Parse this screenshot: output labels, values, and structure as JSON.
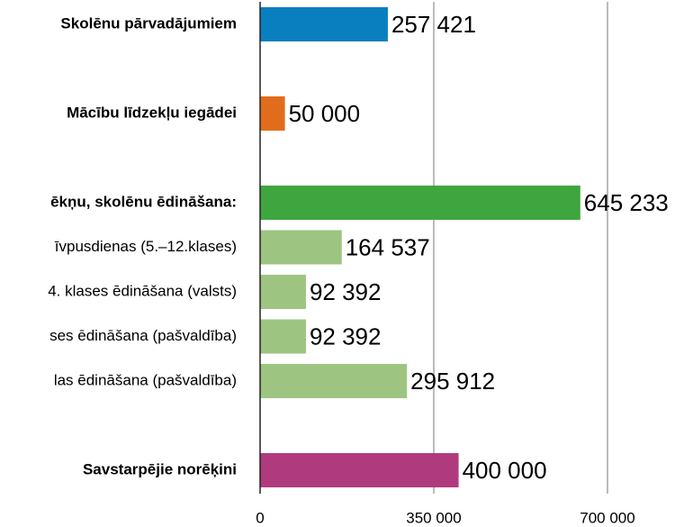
{
  "chart_data": {
    "type": "bar",
    "orientation": "horizontal",
    "categories": [
      "Skolēnu pārvadājumiem",
      null,
      "Mācību līdzekļu iegādei",
      null,
      "ēkņu, skolēnu ēdināšana:",
      "īvpusdienas (5.–12.klases)",
      "4. klases ēdināšana (valsts)",
      "ses ēdināšana (pašvaldība)",
      "las ēdināšana (pašvaldība)",
      null,
      "Savstarpējie norēķini"
    ],
    "bold": [
      true,
      null,
      true,
      null,
      true,
      false,
      false,
      false,
      false,
      null,
      true
    ],
    "values": [
      257421,
      null,
      50000,
      null,
      645233,
      164537,
      92392,
      92392,
      295912,
      null,
      400000
    ],
    "value_labels": [
      "257 421",
      null,
      "50 000",
      null,
      "645 233",
      "164 537",
      "92 392",
      "92 392",
      "295 912",
      null,
      "400 000"
    ],
    "colors": [
      "#0a7fc0",
      null,
      "#e06c1c",
      null,
      "#3fa63f",
      "#9dc581",
      "#9dc581",
      "#9dc581",
      "#9dc581",
      null,
      "#b03a7e"
    ],
    "xlim": [
      0,
      850000
    ],
    "xticks": [
      0,
      {
        "value": 350000,
        "label": "350 000"
      },
      {
        "value": 700000,
        "label": "700 000"
      }
    ],
    "grid": true
  }
}
